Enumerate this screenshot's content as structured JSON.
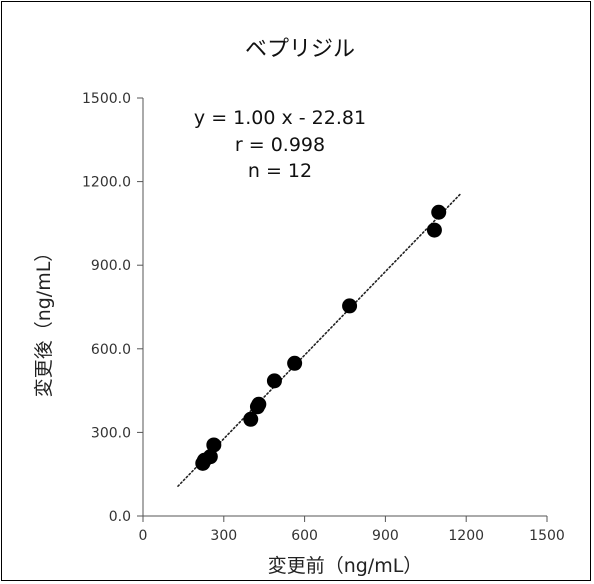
{
  "chart_data": {
    "type": "scatter",
    "title": "ベプリジル",
    "xlabel": "変更前（ng/mL）",
    "ylabel": "変更後（ng/mL）",
    "xlim": [
      0,
      1500
    ],
    "ylim": [
      0,
      1500
    ],
    "x_ticks": [
      0,
      300,
      600,
      900,
      1200,
      1500
    ],
    "y_ticks": [
      0,
      300,
      600,
      900,
      1200,
      1500
    ],
    "x_tick_labels": [
      "0",
      "300",
      "600",
      "900",
      "1200",
      "1500"
    ],
    "y_tick_labels": [
      "0.0",
      "300.0",
      "600.0",
      "900.0",
      "1200.0",
      "1500.0"
    ],
    "grid": false,
    "points": [
      {
        "x": 222,
        "y": 1890
      },
      {
        "x": 228,
        "y": 2000
      },
      {
        "x": 250,
        "y": 2130
      },
      {
        "x": 263,
        "y": 2550
      },
      {
        "x": 400,
        "y": 3470
      },
      {
        "x": 425,
        "y": 3920
      },
      {
        "x": 430,
        "y": 4010
      },
      {
        "x": 488,
        "y": 4850
      },
      {
        "x": 563,
        "y": 5480
      },
      {
        "x": 767,
        "y": 7540
      },
      {
        "x": 1082,
        "y": 10260
      },
      {
        "x": 1098,
        "y": 10900
      }
    ],
    "point_scale": 0.1,
    "trendline": {
      "style": "dotted",
      "slope": 1.0,
      "intercept": -22.81,
      "x_range": [
        130,
        1180
      ]
    },
    "annotations": [
      "y = 1.00 x - 22.81",
      "r = 0.998",
      "n = 12"
    ]
  }
}
